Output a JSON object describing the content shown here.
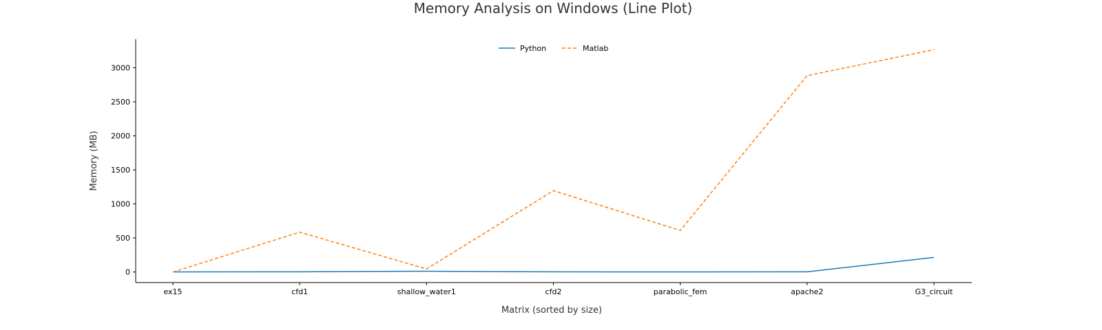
{
  "chart_data": {
    "type": "line",
    "title": "Memory Analysis on Windows (Line Plot)",
    "xlabel": "Matrix (sorted by size)",
    "ylabel": "Memory (MB)",
    "categories": [
      "ex15",
      "cfd1",
      "shallow_water1",
      "cfd2",
      "parabolic_fem",
      "apache2",
      "G3_circuit"
    ],
    "series": [
      {
        "name": "Python",
        "color": "#1f77b4",
        "line_style": "solid",
        "values": [
          2,
          3,
          12,
          3,
          2,
          3,
          215
        ]
      },
      {
        "name": "Matlab",
        "color": "#ff7f0e",
        "line_style": "dashed",
        "values": [
          0,
          585,
          45,
          1195,
          610,
          2885,
          3265
        ]
      }
    ],
    "yticks": [
      0,
      500,
      1000,
      1500,
      2000,
      2500,
      3000
    ],
    "ylim": [
      -155,
      3420
    ],
    "grid": false,
    "legend_position": "top-center"
  }
}
